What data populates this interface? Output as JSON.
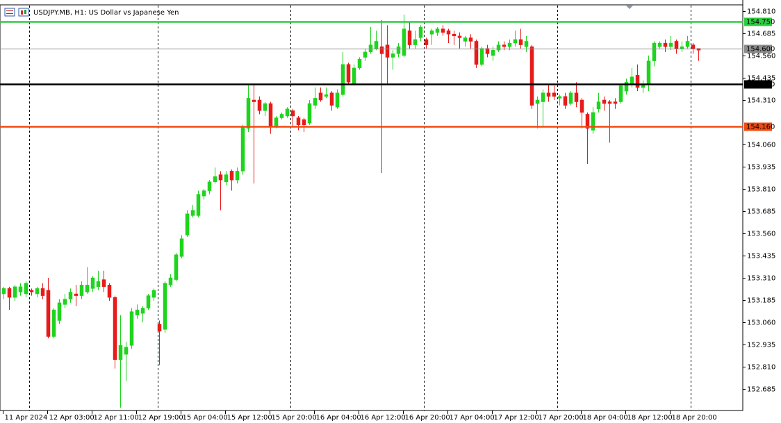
{
  "chart_data": {
    "type": "candlestick",
    "title": "USDJPY.MB, H1:  US Dollar vs Japanese Yen",
    "categories": [
      "11 Apr 2024",
      null,
      null,
      null,
      null,
      null,
      null,
      null,
      "12 Apr 03:00",
      null,
      null,
      null,
      null,
      null,
      null,
      null,
      "12 Apr 11:00",
      null,
      null,
      null,
      null,
      null,
      null,
      null,
      "12 Apr 19:00",
      null,
      null,
      null,
      null,
      null,
      null,
      null,
      "15 Apr 04:00",
      null,
      null,
      null,
      null,
      null,
      null,
      null,
      "15 Apr 12:00",
      null,
      null,
      null,
      null,
      null,
      null,
      null,
      "15 Apr 20:00",
      null,
      null,
      null,
      null,
      null,
      null,
      null,
      "16 Apr 04:00",
      null,
      null,
      null,
      null,
      null,
      null,
      null,
      "16 Apr 12:00",
      null,
      null,
      null,
      null,
      null,
      null,
      null,
      "16 Apr 20:00",
      null,
      null,
      null,
      null,
      null,
      null,
      null,
      "17 Apr 04:00",
      null,
      null,
      null,
      null,
      null,
      null,
      null,
      "17 Apr 12:00",
      null,
      null,
      null,
      null,
      null,
      null,
      null,
      "17 Apr 20:00",
      null,
      null,
      null,
      null,
      null,
      null,
      null,
      "18 Apr 04:00",
      null,
      null,
      null,
      null,
      null,
      null,
      null,
      "18 Apr 12:00",
      null,
      null,
      null,
      null,
      null,
      null,
      null,
      "18 Apr 20:00",
      null,
      null,
      null,
      null,
      null
    ],
    "open": [
      153.22,
      153.25,
      153.2,
      153.23,
      153.22,
      153.24,
      153.22,
      153.25,
      153.24,
      152.98,
      153.07,
      153.16,
      153.19,
      153.22,
      153.21,
      153.23,
      153.25,
      153.26,
      153.3,
      153.27,
      153.2,
      152.85,
      152.88,
      152.93,
      153.1,
      153.11,
      153.14,
      153.2,
      153.05,
      153.02,
      153.27,
      153.3,
      153.43,
      153.55,
      153.66,
      153.66,
      153.77,
      153.8,
      153.85,
      153.89,
      153.85,
      153.91,
      153.86,
      153.91,
      154.15,
      154.31,
      154.31,
      154.25,
      154.29,
      154.16,
      154.21,
      154.22,
      154.25,
      154.21,
      154.2,
      154.18,
      154.28,
      154.35,
      154.33,
      154.35,
      154.27,
      154.34,
      154.51,
      154.4,
      154.49,
      154.55,
      154.58,
      154.6,
      154.61,
      154.62,
      154.55,
      154.57,
      154.56,
      154.7,
      154.62,
      154.66,
      154.65,
      154.68,
      154.69,
      154.71,
      154.7,
      154.68,
      154.67,
      154.64,
      154.66,
      154.64,
      154.51,
      154.6,
      154.56,
      154.59,
      154.62,
      154.61,
      154.63,
      154.65,
      154.61,
      154.61,
      154.29,
      154.3,
      154.35,
      154.35,
      154.32,
      154.33,
      154.29,
      154.35,
      154.31,
      154.23,
      154.14,
      154.26,
      154.31,
      154.3,
      154.3,
      154.3,
      154.36,
      154.4,
      154.45,
      154.38,
      154.4,
      154.53,
      154.61,
      154.63,
      154.61,
      154.64,
      154.6,
      154.61,
      154.62,
      154.6
    ],
    "high": [
      153.26,
      153.26,
      153.27,
      153.28,
      153.29,
      153.25,
      153.26,
      153.28,
      153.31,
      153.14,
      153.19,
      153.22,
      153.25,
      153.27,
      153.29,
      153.37,
      153.32,
      153.35,
      153.35,
      153.28,
      153.21,
      153.1,
      152.95,
      153.14,
      153.16,
      153.15,
      153.22,
      153.25,
      153.07,
      153.29,
      153.33,
      153.45,
      153.55,
      153.69,
      153.72,
      153.8,
      153.81,
      153.86,
      153.93,
      153.91,
      153.91,
      153.92,
      153.93,
      154.17,
      154.4,
      154.4,
      154.33,
      154.3,
      154.3,
      154.22,
      154.24,
      154.27,
      154.26,
      154.22,
      154.21,
      154.31,
      154.38,
      154.38,
      154.38,
      154.36,
      154.37,
      154.58,
      154.52,
      154.51,
      154.55,
      154.6,
      154.72,
      154.7,
      154.76,
      154.73,
      154.59,
      154.63,
      154.79,
      154.75,
      154.7,
      154.73,
      154.66,
      154.71,
      154.72,
      154.73,
      154.71,
      154.7,
      154.69,
      154.67,
      154.68,
      154.65,
      154.61,
      154.62,
      154.61,
      154.64,
      154.64,
      154.65,
      154.7,
      154.71,
      154.67,
      154.62,
      154.33,
      154.37,
      154.4,
      154.39,
      154.34,
      154.35,
      154.36,
      154.41,
      154.32,
      154.24,
      154.27,
      154.35,
      154.33,
      154.31,
      154.32,
      154.4,
      154.43,
      154.49,
      154.51,
      154.42,
      154.56,
      154.64,
      154.64,
      154.65,
      154.67,
      154.65,
      154.64,
      154.67,
      154.63,
      154.6
    ],
    "low": [
      153.19,
      153.13,
      153.18,
      153.21,
      153.2,
      153.21,
      153.2,
      153.19,
      152.97,
      152.97,
      153.05,
      153.14,
      153.17,
      153.15,
      153.19,
      153.22,
      153.23,
      153.24,
      153.23,
      153.18,
      152.8,
      152.58,
      152.73,
      152.91,
      153.08,
      153.06,
      153.13,
      153.18,
      152.82,
      153.0,
      153.26,
      153.29,
      153.42,
      153.54,
      153.65,
      153.65,
      153.75,
      153.78,
      153.84,
      153.69,
      153.83,
      153.8,
      153.84,
      153.89,
      154.13,
      153.84,
      154.23,
      154.22,
      154.12,
      154.15,
      154.2,
      154.21,
      154.16,
      154.14,
      154.13,
      154.17,
      154.26,
      154.3,
      154.32,
      154.25,
      154.26,
      154.33,
      154.4,
      154.39,
      154.48,
      154.53,
      154.57,
      154.59,
      153.9,
      154.4,
      154.48,
      154.55,
      154.55,
      154.6,
      154.6,
      154.64,
      154.6,
      154.62,
      154.67,
      154.67,
      154.63,
      154.62,
      154.6,
      154.61,
      154.6,
      154.49,
      154.5,
      154.55,
      154.53,
      154.58,
      154.59,
      154.59,
      154.61,
      154.6,
      154.58,
      154.26,
      154.15,
      154.16,
      154.3,
      154.31,
      154.28,
      154.26,
      154.28,
      154.27,
      154.15,
      153.95,
      154.12,
      154.24,
      154.25,
      154.07,
      154.26,
      154.29,
      154.34,
      154.38,
      154.36,
      154.35,
      154.36,
      154.5,
      154.6,
      154.58,
      154.59,
      154.57,
      154.58,
      154.6,
      154.57,
      154.53
    ],
    "close": [
      153.25,
      153.2,
      153.26,
      153.26,
      153.28,
      153.23,
      153.25,
      153.21,
      152.98,
      153.13,
      153.17,
      153.19,
      153.23,
      153.21,
      153.27,
      153.27,
      153.31,
      153.29,
      153.26,
      153.2,
      152.85,
      152.93,
      152.92,
      153.12,
      153.13,
      153.14,
      153.21,
      153.24,
      153.01,
      153.28,
      153.31,
      153.44,
      153.53,
      153.67,
      153.69,
      153.78,
      153.8,
      153.85,
      153.88,
      153.86,
      153.89,
      153.86,
      153.91,
      154.16,
      154.32,
      154.3,
      154.25,
      154.29,
      154.16,
      154.21,
      154.23,
      154.26,
      154.22,
      154.17,
      154.17,
      154.29,
      154.32,
      154.31,
      154.34,
      154.28,
      154.35,
      154.51,
      154.41,
      154.49,
      154.54,
      154.58,
      154.62,
      154.64,
      154.57,
      154.55,
      154.57,
      154.61,
      154.71,
      154.62,
      154.65,
      154.72,
      154.62,
      154.7,
      154.71,
      154.69,
      154.68,
      154.67,
      154.66,
      154.66,
      154.64,
      154.51,
      154.6,
      154.57,
      154.59,
      154.62,
      154.61,
      154.63,
      154.65,
      154.62,
      154.64,
      154.28,
      154.31,
      154.35,
      154.33,
      154.33,
      154.33,
      154.28,
      154.35,
      154.3,
      154.24,
      154.15,
      154.24,
      154.3,
      154.29,
      154.29,
      154.29,
      154.39,
      154.41,
      154.44,
      154.38,
      154.4,
      154.53,
      154.63,
      154.63,
      154.61,
      154.63,
      154.6,
      154.61,
      154.64,
      154.6,
      154.59
    ],
    "up_color": "#1ed41e",
    "down_color": "#e81a1a",
    "ylim": [
      152.568,
      154.841
    ],
    "yticks": [
      {
        "value": 154.81,
        "label": "154.810"
      },
      154.685,
      {
        "value": 154.56,
        "label": "154.560"
      },
      154.435,
      {
        "value": 154.31,
        "label": "154.310"
      },
      {
        "value": 154.06,
        "label": "154.060"
      },
      153.935,
      {
        "value": 153.81,
        "label": "153.810"
      },
      153.685,
      {
        "value": 153.56,
        "label": "153.560"
      },
      153.435,
      {
        "value": 153.31,
        "label": "153.310"
      },
      153.185,
      {
        "value": 153.06,
        "label": "153.060"
      },
      152.935,
      {
        "value": 152.81,
        "label": "152.810"
      },
      152.685
    ],
    "levels": [
      {
        "value": 154.75,
        "label": "154.750",
        "color": "#2ecc40"
      },
      {
        "value": 154.6,
        "label": "154.600",
        "color": "#8c8c8c"
      },
      {
        "value": 154.4,
        "label": "154.400",
        "color": "#000000"
      },
      {
        "value": 154.16,
        "label": "154.160",
        "color": "#f04a10"
      }
    ]
  }
}
